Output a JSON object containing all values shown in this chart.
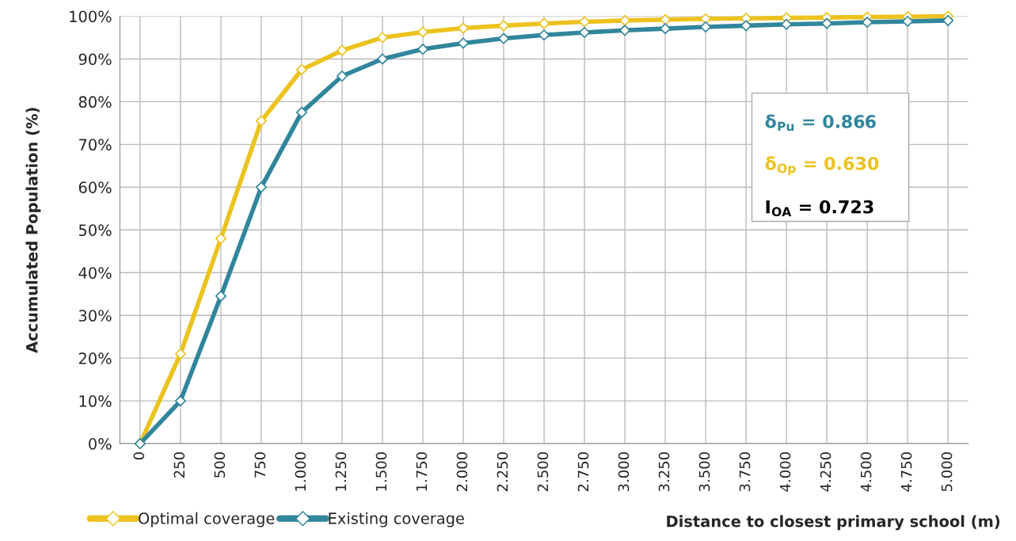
{
  "chart_data": {
    "type": "line",
    "xlabel": "Distance to closest primary school (m)",
    "ylabel": "Accumulated Population (%)",
    "categories": [
      "0",
      "250",
      "500",
      "750",
      "1.000",
      "1.250",
      "1.500",
      "1.750",
      "2.000",
      "2.250",
      "2.500",
      "2.750",
      "3.000",
      "3.250",
      "3.500",
      "3.750",
      "4.000",
      "4.250",
      "4.500",
      "4.750",
      "5.000"
    ],
    "series": [
      {
        "name": "Optimal coverage",
        "color": "#ecc21e",
        "values": [
          0,
          21,
          48,
          75.5,
          87.5,
          92,
          95,
          96.3,
          97.2,
          97.8,
          98.3,
          98.7,
          99,
          99.2,
          99.4,
          99.5,
          99.6,
          99.7,
          99.8,
          99.9,
          100
        ]
      },
      {
        "name": "Existing coverage",
        "color": "#31869c",
        "values": [
          0,
          10,
          34.5,
          60,
          77.5,
          86,
          90,
          92.3,
          93.7,
          94.8,
          95.6,
          96.2,
          96.7,
          97.1,
          97.5,
          97.8,
          98.1,
          98.3,
          98.6,
          98.8,
          99
        ]
      }
    ],
    "ylim": [
      0,
      100
    ],
    "yticks": [
      {
        "value": 0,
        "label": "0%"
      },
      {
        "value": 10,
        "label": "10%"
      },
      {
        "value": 20,
        "label": "20%"
      },
      {
        "value": 30,
        "label": "30%"
      },
      {
        "value": 40,
        "label": "40%"
      },
      {
        "value": 50,
        "label": "50%"
      },
      {
        "value": 60,
        "label": "60%"
      },
      {
        "value": 70,
        "label": "70%"
      },
      {
        "value": 80,
        "label": "80%"
      },
      {
        "value": 90,
        "label": "90%"
      },
      {
        "value": 100,
        "label": "100%"
      }
    ],
    "annotations": [
      "δ$_{Pu}$ = 0.866",
      "δ$_{Op}$ = 0.630",
      "I$_{OA}$ = 0.723"
    ],
    "grid": true,
    "legend": "bottom left",
    "marker": "diamond",
    "line_style": "solid"
  }
}
